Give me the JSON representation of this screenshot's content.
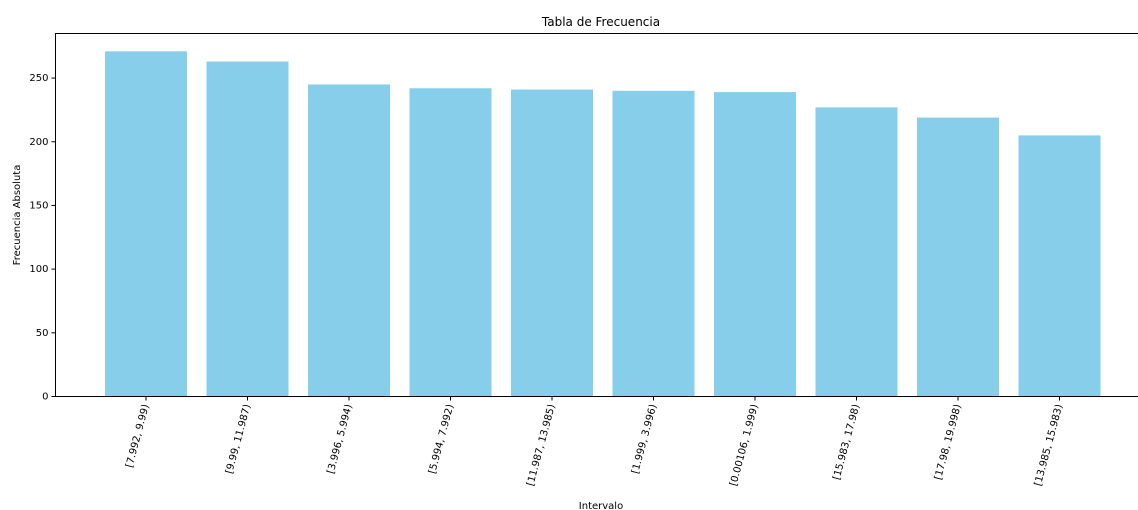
{
  "chart_data": {
    "type": "bar",
    "title": "Tabla de Frecuencia",
    "xlabel": "Intervalo",
    "ylabel": "Frecuencia Absoluta",
    "categories": [
      "[7.992, 9.99)",
      "[9.99, 11.987)",
      "[3.996, 5.994)",
      "[5.994, 7.992)",
      "[11.987, 13.985)",
      "[1.999, 3.996)",
      "[0.00106, 1.999)",
      "[15.983, 17.98)",
      "[17.98, 19.998)",
      "[13.985, 15.983)"
    ],
    "values": [
      271,
      263,
      245,
      242,
      241,
      240,
      239,
      227,
      219,
      205
    ],
    "ylim": [
      0,
      285
    ],
    "yticks": [
      0,
      50,
      100,
      150,
      200,
      250
    ],
    "grid": false,
    "bar_color": "#87CEEB",
    "x_tick_rotation_deg": 75
  }
}
